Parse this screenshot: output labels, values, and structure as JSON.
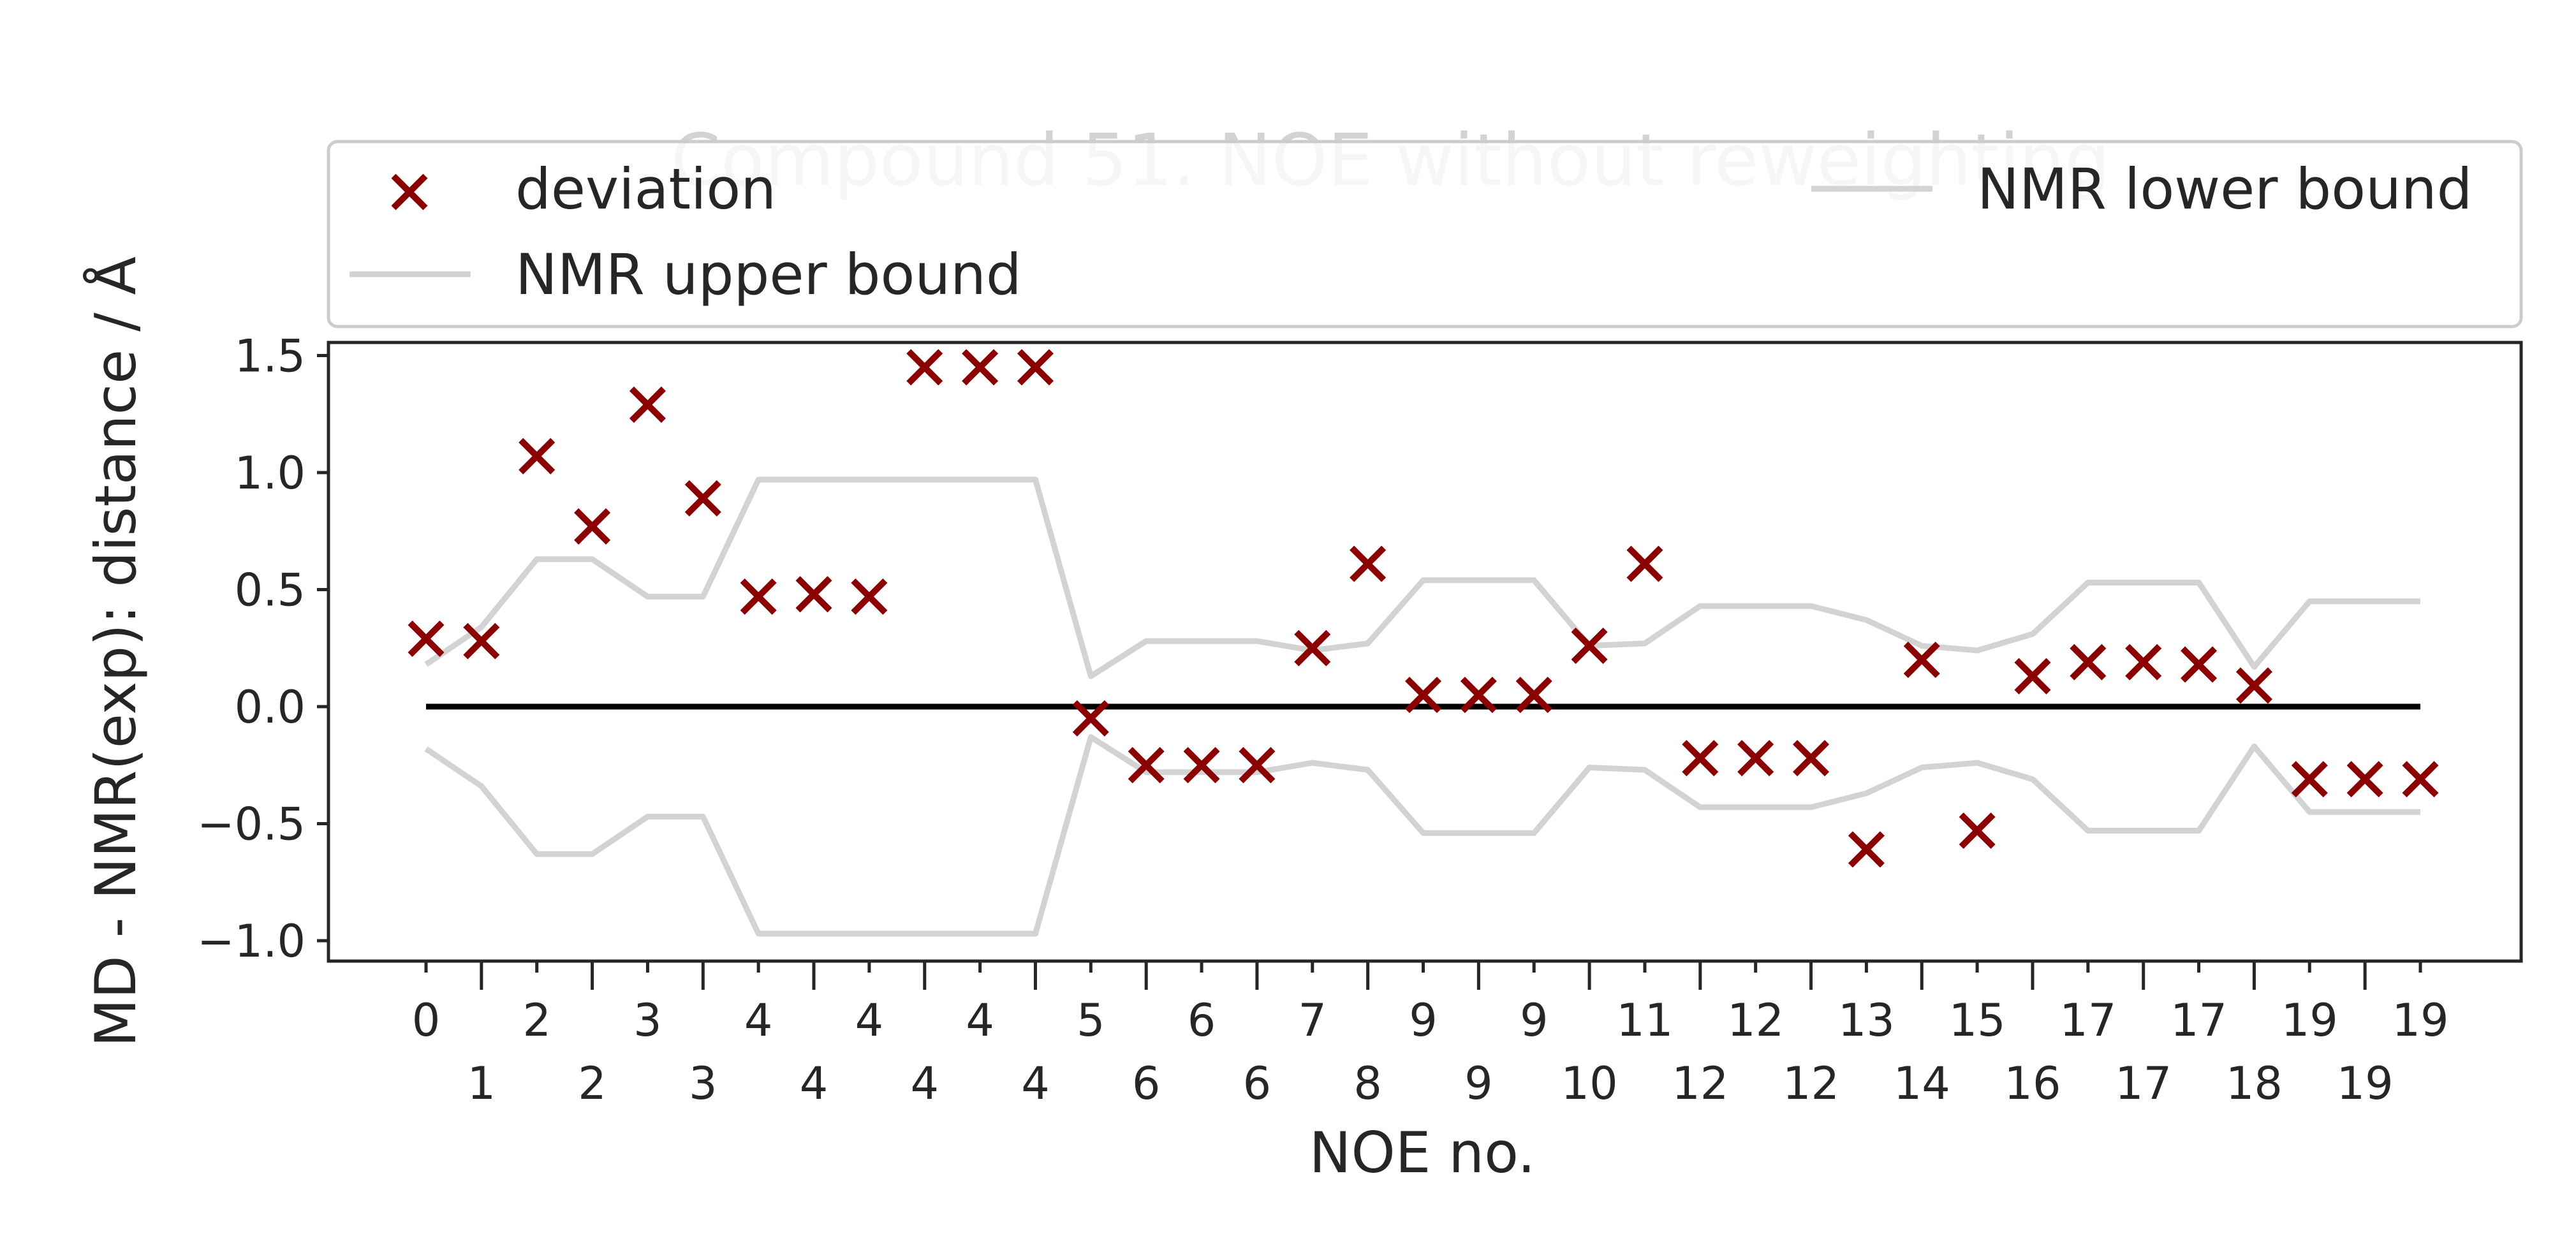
{
  "chart_data": {
    "type": "scatter",
    "title": "Compound 51. NOE without reweighting",
    "xlabel": "NOE no.",
    "ylabel": "MD - NMR(exp): distance / Å",
    "ylim": [
      -1.1,
      1.57
    ],
    "yticks": [
      "1.5",
      "1.0",
      "0.5",
      "0.0",
      "−0.5",
      "−1.0"
    ],
    "ytick_values": [
      1.5,
      1.0,
      0.5,
      0.0,
      -0.5,
      -1.0
    ],
    "xtick_labels": [
      "0",
      "1",
      "2",
      "2",
      "3",
      "3",
      "4",
      "4",
      "4",
      "4",
      "4",
      "4",
      "5",
      "6",
      "6",
      "6",
      "7",
      "8",
      "9",
      "9",
      "9",
      "10",
      "11",
      "12",
      "12",
      "12",
      "13",
      "14",
      "15",
      "16",
      "17",
      "17",
      "17",
      "18",
      "19",
      "19",
      "19"
    ],
    "x": [
      0,
      1,
      2,
      3,
      4,
      5,
      6,
      7,
      8,
      9,
      10,
      11,
      12,
      13,
      14,
      15,
      16,
      17,
      18,
      19,
      20,
      21,
      22,
      23,
      24,
      25,
      26,
      27,
      28,
      29,
      30,
      31,
      32,
      33,
      34,
      35,
      36
    ],
    "grid": false,
    "legend_placement": "top, above plot",
    "series": [
      {
        "name": "deviation",
        "kind": "markers",
        "color": "#8b0000",
        "values": [
          0.29,
          0.28,
          1.07,
          0.77,
          1.29,
          0.89,
          0.47,
          0.48,
          0.47,
          1.45,
          1.45,
          1.45,
          -0.05,
          -0.25,
          -0.25,
          -0.25,
          0.25,
          0.61,
          0.05,
          0.05,
          0.05,
          0.26,
          0.61,
          -0.22,
          -0.22,
          -0.22,
          -0.61,
          0.2,
          -0.53,
          0.13,
          0.19,
          0.19,
          0.18,
          0.09,
          -0.31,
          -0.31,
          -0.31
        ]
      },
      {
        "name": "NMR upper bound",
        "kind": "line",
        "color": "#d3d3d3",
        "values": [
          0.18,
          0.34,
          0.63,
          0.63,
          0.47,
          0.47,
          0.97,
          0.97,
          0.97,
          0.97,
          0.97,
          0.97,
          0.13,
          0.28,
          0.28,
          0.28,
          0.24,
          0.27,
          0.54,
          0.54,
          0.54,
          0.26,
          0.27,
          0.43,
          0.43,
          0.43,
          0.37,
          0.26,
          0.24,
          0.31,
          0.53,
          0.53,
          0.53,
          0.17,
          0.45,
          0.45,
          0.45
        ]
      },
      {
        "name": "NMR lower bound",
        "kind": "line",
        "color": "#d3d3d3",
        "values": [
          -0.18,
          -0.34,
          -0.63,
          -0.63,
          -0.47,
          -0.47,
          -0.97,
          -0.97,
          -0.97,
          -0.97,
          -0.97,
          -0.97,
          -0.13,
          -0.28,
          -0.28,
          -0.28,
          -0.24,
          -0.27,
          -0.54,
          -0.54,
          -0.54,
          -0.26,
          -0.27,
          -0.43,
          -0.43,
          -0.43,
          -0.37,
          -0.26,
          -0.24,
          -0.31,
          -0.53,
          -0.53,
          -0.53,
          -0.17,
          -0.45,
          -0.45,
          -0.45
        ]
      }
    ],
    "zero_line": {
      "y": 0,
      "color": "#000000"
    },
    "legend": {
      "deviation": "deviation",
      "upper": "NMR upper bound",
      "lower": "NMR lower bound"
    }
  }
}
